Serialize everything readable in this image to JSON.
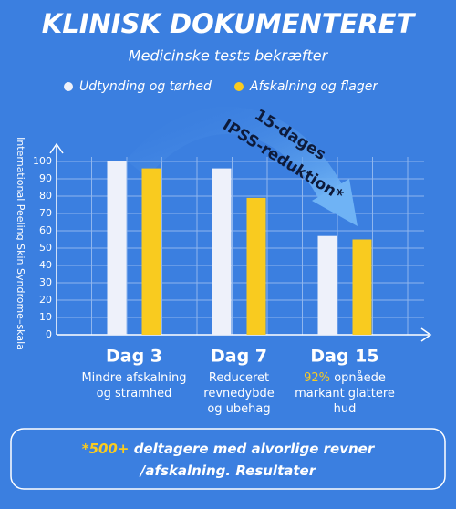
{
  "chart_data": {
    "type": "bar",
    "title": "KLINISK DOKUMENTERET",
    "subtitle": "Medicinske tests bekræfter",
    "y_label": "International Peeling Skin Syndrome–skala",
    "categories": [
      "Dag 3",
      "Dag 7",
      "Dag 15"
    ],
    "series": [
      {
        "name": "Udtynding og tørhed",
        "color": "#eef1fa",
        "values": [
          100,
          96,
          57
        ]
      },
      {
        "name": "Afskalning og flager",
        "color": "#f9cb1f",
        "values": [
          96,
          79,
          55
        ]
      }
    ],
    "ylim": [
      0,
      100
    ],
    "yticks": [
      0,
      10,
      20,
      30,
      40,
      50,
      60,
      70,
      80,
      90,
      100
    ],
    "grid": true,
    "annotation": [
      "15-dages",
      "IPSS-reduktion*"
    ],
    "captions": [
      {
        "highlight": null,
        "lines": [
          "Mindre afskalning",
          "og stramhed"
        ]
      },
      {
        "highlight": null,
        "lines": [
          "Reduceret",
          "revnedybde",
          "og ubehag"
        ]
      },
      {
        "highlight": "92%",
        "lines": [
          "opnåede",
          "markant glattere",
          "hud"
        ]
      }
    ],
    "footnote": {
      "highlight": "*500+",
      "lines": [
        "deltagere med alvorlige revner",
        "/afskalning. Resultater"
      ]
    }
  }
}
